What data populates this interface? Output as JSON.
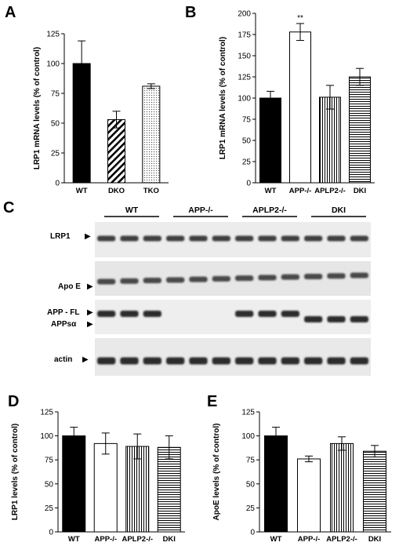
{
  "panel_letters": [
    "A",
    "B",
    "C",
    "D",
    "E"
  ],
  "chart_data": [
    {
      "panel": "A",
      "type": "bar",
      "categories": [
        "WT",
        "DKO",
        "TKO"
      ],
      "values": [
        100,
        53,
        81
      ],
      "errors": [
        19,
        7,
        2
      ],
      "fills": [
        "solid-black",
        "diagonal-hatch",
        "dotted"
      ],
      "ylabel": "LRP1 mRNA levels  (% of control)",
      "ylim": [
        0,
        125
      ],
      "yticks": [
        0,
        25,
        50,
        75,
        100,
        125
      ],
      "significance": [
        "",
        "",
        ""
      ],
      "grid": false
    },
    {
      "panel": "B",
      "type": "bar",
      "categories": [
        "WT",
        "APP-/-",
        "APLP2-/-",
        "DKI"
      ],
      "values": [
        100,
        178,
        101,
        125
      ],
      "errors": [
        8,
        10,
        14,
        10
      ],
      "fills": [
        "solid-black",
        "white",
        "vertical-stripes",
        "horizontal-stripes"
      ],
      "ylabel": "LRP1 mRNA levels  (% of control)",
      "ylim": [
        0,
        200
      ],
      "yticks": [
        0,
        25,
        50,
        75,
        100,
        125,
        150,
        175,
        200
      ],
      "significance": [
        "",
        "**",
        "",
        ""
      ],
      "grid": false
    },
    {
      "panel": "D",
      "type": "bar",
      "categories": [
        "WT",
        "APP-/-",
        "APLP2-/-",
        "DKI"
      ],
      "values": [
        100,
        92,
        89,
        88
      ],
      "errors": [
        9,
        11,
        13,
        12
      ],
      "fills": [
        "solid-black",
        "white",
        "vertical-stripes",
        "horizontal-stripes"
      ],
      "ylabel": "LRP1 levels (% of control)",
      "ylim": [
        0,
        125
      ],
      "yticks": [
        0,
        25,
        50,
        75,
        100,
        125
      ],
      "significance": [
        "",
        "",
        "",
        ""
      ],
      "grid": false
    },
    {
      "panel": "E",
      "type": "bar",
      "categories": [
        "WT",
        "APP-/-",
        "APLP2-/-",
        "DKI"
      ],
      "values": [
        100,
        76,
        92,
        84
      ],
      "errors": [
        9,
        3,
        7,
        6
      ],
      "fills": [
        "solid-black",
        "white",
        "vertical-stripes",
        "horizontal-stripes"
      ],
      "ylabel": "ApoE levels (% of control)",
      "ylim": [
        0,
        125
      ],
      "yticks": [
        0,
        25,
        50,
        75,
        100,
        125
      ],
      "significance": [
        "",
        "",
        "",
        ""
      ],
      "grid": false
    }
  ],
  "blot": {
    "groups": [
      "WT",
      "APP-/-",
      "APLP2-/-",
      "DKI"
    ],
    "lanes_per_group": 3,
    "rows": [
      {
        "label": "LRP1",
        "marker": "▶"
      },
      {
        "label": "Apo E",
        "marker": "▶"
      },
      {
        "label": "APP - FL",
        "marker": "▶",
        "sublabel": "APPsα",
        "submarker": "▶"
      },
      {
        "label": "actin",
        "marker": "▶"
      }
    ]
  },
  "colors": {
    "ink": "#000000",
    "paper": "#ffffff",
    "blot_background": "#e9e9e9",
    "band": "#2a2a2a"
  }
}
